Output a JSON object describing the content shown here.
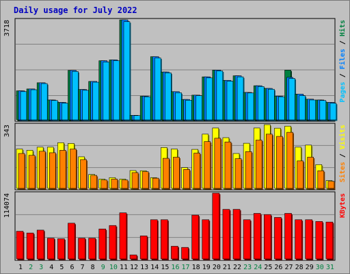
{
  "title": "Daily usage for July 2022",
  "colors": {
    "background": "#c0c0c0",
    "panel": "#c0c0c0",
    "grid": "#808080",
    "hits": "#008040",
    "files": "#0080ff",
    "pages": "#00c0ff",
    "visits": "#ffff00",
    "sites": "#ff8000",
    "kbytes": "#ff0000",
    "title": "#0000c0",
    "weekend_day": "#008040",
    "weekday": "#000000"
  },
  "chart_data": [
    {
      "type": "bar",
      "panel": "top",
      "max_label": "3718",
      "ylim": [
        0,
        3718
      ],
      "legend": [
        "Pages",
        "Files",
        "Hits"
      ],
      "legend_separator": " / ",
      "series": [
        {
          "name": "Hits",
          "values": [
            1080,
            1150,
            1380,
            740,
            650,
            1840,
            1130,
            1430,
            2200,
            2230,
            3718,
            170,
            880,
            2350,
            1780,
            1050,
            760,
            920,
            1600,
            1850,
            1470,
            1640,
            1020,
            1270,
            1170,
            880,
            1850,
            960,
            770,
            740,
            650
          ]
        },
        {
          "name": "Files",
          "values": [
            1080,
            1150,
            1380,
            740,
            650,
            1840,
            1130,
            1430,
            2200,
            2230,
            3718,
            170,
            880,
            2350,
            1780,
            1050,
            760,
            920,
            1600,
            1850,
            1470,
            1640,
            1020,
            1270,
            1170,
            880,
            1580,
            960,
            770,
            740,
            650
          ]
        },
        {
          "name": "Pages",
          "values": [
            1050,
            1120,
            1350,
            720,
            620,
            1800,
            1100,
            1400,
            2150,
            2200,
            3650,
            160,
            860,
            2300,
            1750,
            1010,
            730,
            900,
            1560,
            1820,
            1440,
            1600,
            1000,
            1240,
            1140,
            860,
            1540,
            900,
            740,
            720,
            620
          ]
        }
      ]
    },
    {
      "type": "bar",
      "panel": "middle",
      "max_label": "343",
      "ylim": [
        0,
        343
      ],
      "legend": [
        "Sites",
        "Visits"
      ],
      "legend_separator": " / ",
      "series": [
        {
          "name": "Visits",
          "values": [
            212,
            205,
            222,
            222,
            246,
            242,
            170,
            75,
            50,
            58,
            50,
            96,
            95,
            58,
            220,
            212,
            112,
            210,
            292,
            325,
            273,
            188,
            243,
            325,
            343,
            324,
            335,
            222,
            233,
            128,
            42
          ]
        },
        {
          "name": "Sites",
          "values": [
            188,
            178,
            200,
            192,
            205,
            212,
            155,
            70,
            45,
            50,
            45,
            85,
            90,
            55,
            162,
            168,
            102,
            190,
            252,
            270,
            250,
            160,
            198,
            260,
            292,
            280,
            302,
            148,
            168,
            95,
            38
          ]
        }
      ]
    },
    {
      "type": "bar",
      "panel": "bottom",
      "max_label": "114074",
      "ylim": [
        0,
        114074
      ],
      "legend": [
        "KBytes"
      ],
      "legend_separator": "",
      "series": [
        {
          "name": "KBytes",
          "values": [
            48000,
            45000,
            50000,
            36000,
            35000,
            62000,
            36000,
            36000,
            52000,
            58000,
            80000,
            7000,
            40000,
            68000,
            68000,
            22000,
            20000,
            76000,
            68000,
            114074,
            86000,
            86000,
            68000,
            79000,
            77000,
            72000,
            79000,
            68000,
            68000,
            65000,
            64000
          ]
        }
      ]
    }
  ],
  "days": [
    "1",
    "2",
    "3",
    "4",
    "5",
    "6",
    "7",
    "8",
    "9",
    "10",
    "11",
    "12",
    "13",
    "14",
    "15",
    "16",
    "17",
    "18",
    "19",
    "20",
    "21",
    "22",
    "23",
    "24",
    "25",
    "26",
    "27",
    "28",
    "29",
    "30",
    "31"
  ],
  "weekend_days": [
    "2",
    "3",
    "9",
    "10",
    "16",
    "17",
    "23",
    "24",
    "30",
    "31"
  ]
}
